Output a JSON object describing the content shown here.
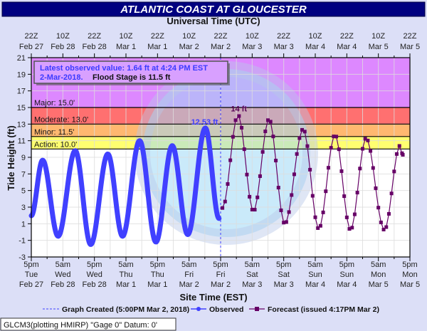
{
  "chart_data": {
    "type": "line",
    "title": "ATLANTIC COAST AT GLOUCESTER",
    "top_axis_title": "Universal Time (UTC)",
    "top_ticks": [
      [
        "22Z",
        "Feb 27"
      ],
      [
        "10Z",
        "Feb 28"
      ],
      [
        "22Z",
        "Feb 28"
      ],
      [
        "10Z",
        "Mar 1"
      ],
      [
        "22Z",
        "Mar 1"
      ],
      [
        "10Z",
        "Mar 2"
      ],
      [
        "22Z",
        "Mar 2"
      ],
      [
        "10Z",
        "Mar 3"
      ],
      [
        "22Z",
        "Mar 3"
      ],
      [
        "10Z",
        "Mar 4"
      ],
      [
        "22Z",
        "Mar 4"
      ],
      [
        "10Z",
        "Mar 5"
      ],
      [
        "22Z",
        "Mar 5"
      ]
    ],
    "bottom_ticks": [
      [
        "5pm",
        "Tue",
        "Feb 27"
      ],
      [
        "5am",
        "Wed",
        "Feb 28"
      ],
      [
        "5pm",
        "Wed",
        "Feb 28"
      ],
      [
        "5am",
        "Thu",
        "Mar 1"
      ],
      [
        "5pm",
        "Thu",
        "Mar 1"
      ],
      [
        "5am",
        "Fri",
        "Mar 2"
      ],
      [
        "5pm",
        "Fri",
        "Mar 2"
      ],
      [
        "5am",
        "Sat",
        "Mar 3"
      ],
      [
        "5pm",
        "Sat",
        "Mar 3"
      ],
      [
        "5am",
        "Sun",
        "Mar 4"
      ],
      [
        "5pm",
        "Sun",
        "Mar 4"
      ],
      [
        "5am",
        "Mon",
        "Mar 5"
      ],
      [
        "5pm",
        "Mon",
        "Mar 5"
      ]
    ],
    "xlabel": "Site Time (EST)",
    "ylabel": "Tide Height (ft)",
    "x_unit": "hours since 5pm EST Feb 27",
    "xlim": [
      0,
      144
    ],
    "ylim": [
      -3,
      21
    ],
    "y_ticks": [
      -3,
      -1,
      1,
      3,
      5,
      7,
      9,
      11,
      13,
      15,
      17,
      19,
      21
    ],
    "grid": true,
    "flood_stages": [
      {
        "label": "Major: 15.0'",
        "value": 15.0,
        "color": "#dd88ff"
      },
      {
        "label": "Moderate: 13.0'",
        "value": 13.0,
        "color": "#ff7070"
      },
      {
        "label": "Minor: 11.5'",
        "value": 11.5,
        "color": "#ffb870"
      },
      {
        "label": "Action: 10.0'",
        "value": 10.0,
        "color": "#ffff70"
      }
    ],
    "info_line1": "Latest observed value: 1.64 ft at 4:24 PM EST",
    "info_line2_date": "2-Mar-2018.",
    "info_line2_flood": "Flood Stage is 11.5 ft",
    "observed_peak_label": "12.53 ft",
    "forecast_peak_label": "14 ft",
    "graph_created_hour": 72,
    "series": [
      {
        "name": "Observed",
        "color": "#4040ff",
        "extrema": [
          [
            0,
            1.97
          ],
          [
            4.3,
            8.65
          ],
          [
            10.2,
            -0.5
          ],
          [
            16.7,
            9.8
          ],
          [
            22.6,
            -1.5
          ],
          [
            29.1,
            9.4
          ],
          [
            34.7,
            -0.5
          ],
          [
            41.2,
            11.0
          ],
          [
            47.4,
            -1.2
          ],
          [
            53.6,
            10.4
          ],
          [
            59.5,
            -0.3
          ],
          [
            66.2,
            12.53
          ],
          [
            71.4,
            1.64
          ]
        ]
      },
      {
        "name": "Forecast",
        "color": "#660066",
        "extrema": [
          [
            72.7,
            2.9
          ],
          [
            78.6,
            14.1
          ],
          [
            84.5,
            2.5
          ],
          [
            90.4,
            13.6
          ],
          [
            96.4,
            1.0
          ],
          [
            103.4,
            12.4
          ],
          [
            109.3,
            0.4
          ],
          [
            115.5,
            11.7
          ],
          [
            121.4,
            0.25
          ],
          [
            127.3,
            11.3
          ],
          [
            134.3,
            0.25
          ],
          [
            140.2,
            10.4
          ],
          [
            141.3,
            9.3
          ]
        ]
      }
    ],
    "legend": {
      "created": "Graph Created (5:00PM Mar 2, 2018)",
      "observed": "Observed",
      "forecast": "Forecast (issued 4:17PM Mar 2)"
    }
  },
  "footer": "GLCM3(plotting HMIRP) \"Gage 0\" Datum: 0'"
}
